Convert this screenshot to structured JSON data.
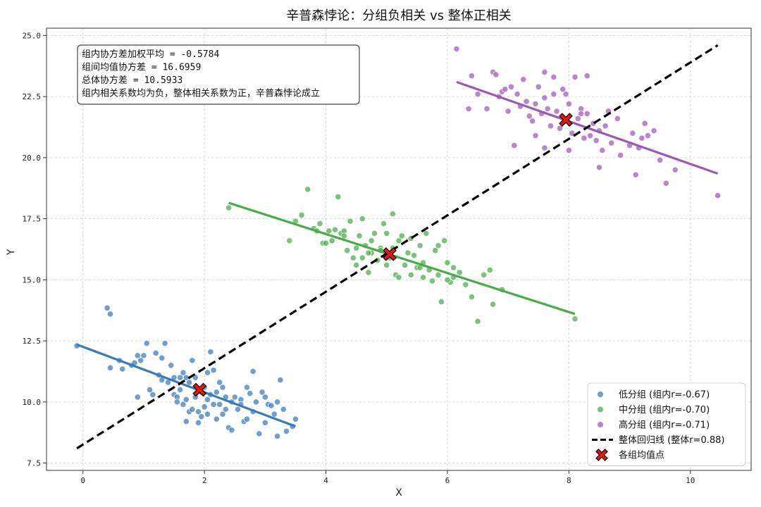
{
  "chart_data": {
    "type": "scatter",
    "title": "辛普森悖论：分组负相关 vs 整体正相关",
    "xlabel": "X",
    "ylabel": "Y",
    "xlim": [
      -0.6,
      11.0
    ],
    "ylim": [
      7.2,
      25.3
    ],
    "x_ticks": [
      0,
      2,
      4,
      6,
      8,
      10
    ],
    "x_tick_labels": [
      "0",
      "2",
      "4",
      "6",
      "8",
      "10"
    ],
    "y_ticks": [
      7.5,
      10.0,
      12.5,
      15.0,
      17.5,
      20.0,
      22.5,
      25.0
    ],
    "y_tick_labels": [
      "7.5",
      "10.0",
      "12.5",
      "15.0",
      "17.5",
      "20.0",
      "22.5",
      "25.0"
    ],
    "grid": true,
    "legend_position": "lower-right",
    "stats_box": {
      "lines": [
        "组内协方差加权平均 = -0.5784",
        "组间均值协方差 = 16.6959",
        "总体协方差 = 10.5933",
        "组内相关系数均为负，整体相关系数为正，辛普森悖论成立"
      ],
      "position": "top-left"
    },
    "series": [
      {
        "name": "低分组 (组内r=-0.67)",
        "color": "#3a7ab5",
        "mean": [
          1.92,
          10.5
        ],
        "fit_line": {
          "x": [
            -0.1,
            3.5
          ],
          "y": [
            12.35,
            9.0
          ]
        },
        "points": [
          [
            -0.1,
            12.3
          ],
          [
            0.4,
            13.85
          ],
          [
            0.45,
            13.6
          ],
          [
            0.45,
            11.4
          ],
          [
            0.6,
            11.7
          ],
          [
            0.65,
            11.35
          ],
          [
            0.8,
            11.5
          ],
          [
            0.85,
            11.6
          ],
          [
            0.9,
            11.9
          ],
          [
            0.95,
            11.7
          ],
          [
            0.9,
            10.2
          ],
          [
            1.0,
            11.9
          ],
          [
            1.05,
            12.4
          ],
          [
            1.1,
            10.5
          ],
          [
            1.15,
            10.3
          ],
          [
            1.2,
            12.0
          ],
          [
            1.25,
            11.1
          ],
          [
            1.3,
            11.8
          ],
          [
            1.35,
            12.4
          ],
          [
            1.4,
            10.8
          ],
          [
            1.45,
            11.5
          ],
          [
            1.5,
            10.3
          ],
          [
            1.5,
            11.0
          ],
          [
            1.55,
            10.2
          ],
          [
            1.6,
            10.5
          ],
          [
            1.6,
            11.0
          ],
          [
            1.65,
            11.2
          ],
          [
            1.65,
            9.9
          ],
          [
            1.7,
            10.1
          ],
          [
            1.7,
            9.2
          ],
          [
            1.75,
            10.8
          ],
          [
            1.75,
            9.6
          ],
          [
            1.8,
            11.7
          ],
          [
            1.8,
            9.7
          ],
          [
            1.85,
            11.0
          ],
          [
            1.85,
            10.2
          ],
          [
            1.9,
            9.6
          ],
          [
            1.9,
            9.15
          ],
          [
            1.95,
            10.4
          ],
          [
            2.0,
            10.6
          ],
          [
            2.0,
            9.8
          ],
          [
            2.05,
            11.2
          ],
          [
            2.05,
            10.1
          ],
          [
            2.1,
            12.05
          ],
          [
            2.1,
            10.3
          ],
          [
            2.15,
            11.3
          ],
          [
            2.15,
            9.9
          ],
          [
            2.2,
            10.4
          ],
          [
            2.2,
            9.3
          ],
          [
            2.25,
            9.9
          ],
          [
            2.3,
            10.6
          ],
          [
            2.3,
            9.5
          ],
          [
            2.35,
            10.2
          ],
          [
            2.35,
            9.7
          ],
          [
            2.4,
            8.95
          ],
          [
            2.45,
            8.85
          ],
          [
            2.45,
            10.0
          ],
          [
            2.5,
            10.2
          ],
          [
            2.55,
            9.7
          ],
          [
            2.6,
            10.1
          ],
          [
            2.65,
            9.2
          ],
          [
            2.7,
            10.6
          ],
          [
            2.7,
            9.3
          ],
          [
            2.75,
            10.35
          ],
          [
            2.8,
            9.6
          ],
          [
            2.8,
            11.25
          ],
          [
            2.85,
            10.0
          ],
          [
            2.9,
            8.7
          ],
          [
            2.95,
            10.4
          ],
          [
            3.0,
            10.2
          ],
          [
            3.05,
            9.9
          ],
          [
            3.1,
            9.85
          ],
          [
            3.15,
            9.5
          ],
          [
            3.2,
            8.6
          ],
          [
            3.2,
            10.0
          ],
          [
            3.25,
            10.9
          ],
          [
            3.3,
            9.7
          ],
          [
            3.35,
            8.8
          ],
          [
            3.45,
            9.0
          ],
          [
            3.5,
            9.3
          ],
          [
            1.55,
            10.0
          ],
          [
            1.95,
            9.4
          ],
          [
            2.25,
            10.8
          ],
          [
            2.6,
            9.9
          ],
          [
            3.0,
            9.15
          ],
          [
            1.3,
            10.9
          ],
          [
            1.7,
            11.0
          ],
          [
            2.05,
            9.5
          ]
        ]
      },
      {
        "name": "中分组 (组内r=-0.70)",
        "color": "#4aab4a",
        "mean": [
          5.05,
          16.05
        ],
        "fit_line": {
          "x": [
            2.4,
            8.1
          ],
          "y": [
            18.15,
            13.6
          ]
        },
        "points": [
          [
            2.4,
            17.95
          ],
          [
            3.4,
            16.6
          ],
          [
            3.5,
            17.4
          ],
          [
            3.6,
            17.65
          ],
          [
            3.7,
            18.7
          ],
          [
            3.8,
            17.1
          ],
          [
            3.85,
            17.0
          ],
          [
            3.9,
            17.3
          ],
          [
            3.95,
            16.5
          ],
          [
            4.0,
            16.5
          ],
          [
            4.05,
            17.0
          ],
          [
            4.1,
            16.6
          ],
          [
            4.15,
            17.05
          ],
          [
            4.2,
            18.4
          ],
          [
            4.25,
            16.9
          ],
          [
            4.3,
            17.0
          ],
          [
            4.35,
            16.2
          ],
          [
            4.4,
            17.4
          ],
          [
            4.45,
            15.9
          ],
          [
            4.5,
            16.3
          ],
          [
            4.5,
            15.6
          ],
          [
            4.55,
            16.8
          ],
          [
            4.6,
            15.9
          ],
          [
            4.6,
            17.5
          ],
          [
            4.65,
            16.4
          ],
          [
            4.7,
            15.3
          ],
          [
            4.75,
            16.6
          ],
          [
            4.75,
            16.1
          ],
          [
            4.8,
            16.9
          ],
          [
            4.85,
            15.8
          ],
          [
            4.9,
            16.3
          ],
          [
            4.95,
            17.3
          ],
          [
            5.0,
            15.6
          ],
          [
            5.0,
            16.9
          ],
          [
            5.05,
            15.9
          ],
          [
            5.1,
            17.7
          ],
          [
            5.1,
            16.3
          ],
          [
            5.15,
            15.2
          ],
          [
            5.2,
            16.6
          ],
          [
            5.25,
            16.8
          ],
          [
            5.3,
            15.6
          ],
          [
            5.35,
            16.1
          ],
          [
            5.4,
            15.2
          ],
          [
            5.45,
            16.0
          ],
          [
            5.5,
            15.5
          ],
          [
            5.55,
            16.4
          ],
          [
            5.6,
            15.7
          ],
          [
            5.6,
            15.1
          ],
          [
            5.65,
            16.9
          ],
          [
            5.7,
            15.4
          ],
          [
            5.75,
            14.95
          ],
          [
            5.8,
            16.2
          ],
          [
            5.85,
            15.2
          ],
          [
            5.9,
            14.1
          ],
          [
            5.95,
            16.6
          ],
          [
            6.0,
            15.7
          ],
          [
            6.05,
            14.9
          ],
          [
            6.1,
            15.1
          ],
          [
            6.2,
            15.3
          ],
          [
            6.3,
            14.8
          ],
          [
            6.4,
            14.3
          ],
          [
            6.5,
            13.3
          ],
          [
            6.6,
            15.2
          ],
          [
            6.7,
            15.4
          ],
          [
            6.75,
            14.0
          ],
          [
            6.9,
            14.6
          ],
          [
            8.1,
            13.4
          ],
          [
            5.2,
            15.1
          ],
          [
            5.85,
            16.4
          ],
          [
            6.1,
            15.5
          ],
          [
            4.9,
            16.2
          ],
          [
            5.4,
            16.7
          ],
          [
            5.55,
            15.5
          ],
          [
            6.0,
            15.0
          ],
          [
            4.3,
            16.8
          ],
          [
            4.7,
            16.1
          ]
        ]
      },
      {
        "name": "高分组 (组内r=-0.71)",
        "color": "#9b59b6",
        "mean": [
          7.95,
          21.55
        ],
        "fit_line": {
          "x": [
            6.15,
            10.45
          ],
          "y": [
            23.1,
            19.35
          ]
        },
        "points": [
          [
            6.15,
            24.45
          ],
          [
            6.35,
            22.0
          ],
          [
            6.4,
            23.35
          ],
          [
            6.5,
            22.6
          ],
          [
            6.65,
            22.0
          ],
          [
            6.75,
            23.5
          ],
          [
            6.8,
            23.4
          ],
          [
            6.85,
            22.5
          ],
          [
            6.9,
            22.7
          ],
          [
            6.95,
            22.8
          ],
          [
            7.0,
            21.9
          ],
          [
            7.05,
            22.9
          ],
          [
            7.1,
            20.5
          ],
          [
            7.15,
            22.6
          ],
          [
            7.2,
            22.1
          ],
          [
            7.25,
            23.2
          ],
          [
            7.3,
            22.3
          ],
          [
            7.35,
            21.7
          ],
          [
            7.4,
            21.5
          ],
          [
            7.45,
            22.2
          ],
          [
            7.5,
            22.9
          ],
          [
            7.55,
            21.8
          ],
          [
            7.6,
            23.5
          ],
          [
            7.6,
            20.4
          ],
          [
            7.65,
            22.0
          ],
          [
            7.7,
            21.3
          ],
          [
            7.75,
            22.6
          ],
          [
            7.8,
            21.9
          ],
          [
            7.85,
            21.2
          ],
          [
            7.9,
            22.8
          ],
          [
            7.95,
            21.5
          ],
          [
            8.0,
            22.2
          ],
          [
            8.0,
            20.3
          ],
          [
            8.05,
            21.0
          ],
          [
            8.1,
            23.3
          ],
          [
            8.15,
            21.6
          ],
          [
            8.2,
            22.0
          ],
          [
            8.25,
            20.8
          ],
          [
            8.3,
            21.8
          ],
          [
            8.35,
            20.9
          ],
          [
            8.4,
            21.4
          ],
          [
            8.45,
            20.7
          ],
          [
            8.5,
            21.1
          ],
          [
            8.5,
            19.6
          ],
          [
            8.55,
            20.3
          ],
          [
            8.6,
            21.3
          ],
          [
            8.7,
            20.6
          ],
          [
            8.8,
            21.6
          ],
          [
            8.85,
            20.1
          ],
          [
            9.0,
            20.5
          ],
          [
            9.05,
            21.0
          ],
          [
            9.1,
            19.3
          ],
          [
            9.15,
            20.4
          ],
          [
            9.25,
            21.4
          ],
          [
            9.3,
            20.9
          ],
          [
            9.4,
            21.1
          ],
          [
            9.5,
            19.9
          ],
          [
            9.6,
            18.95
          ],
          [
            9.75,
            19.5
          ],
          [
            10.45,
            18.45
          ],
          [
            7.75,
            23.3
          ],
          [
            8.3,
            23.35
          ],
          [
            7.95,
            22.6
          ],
          [
            8.65,
            21.9
          ],
          [
            9.2,
            20.8
          ],
          [
            7.45,
            20.9
          ],
          [
            8.2,
            21.8
          ],
          [
            7.6,
            22.45
          ]
        ]
      }
    ],
    "overall_fit": {
      "name": "整体回归线 (整体r=0.88)",
      "color": "#000000",
      "x": [
        -0.1,
        10.45
      ],
      "y": [
        8.1,
        24.6
      ]
    },
    "means_legend": {
      "name": "各组均值点",
      "color": "#e8150e"
    }
  }
}
